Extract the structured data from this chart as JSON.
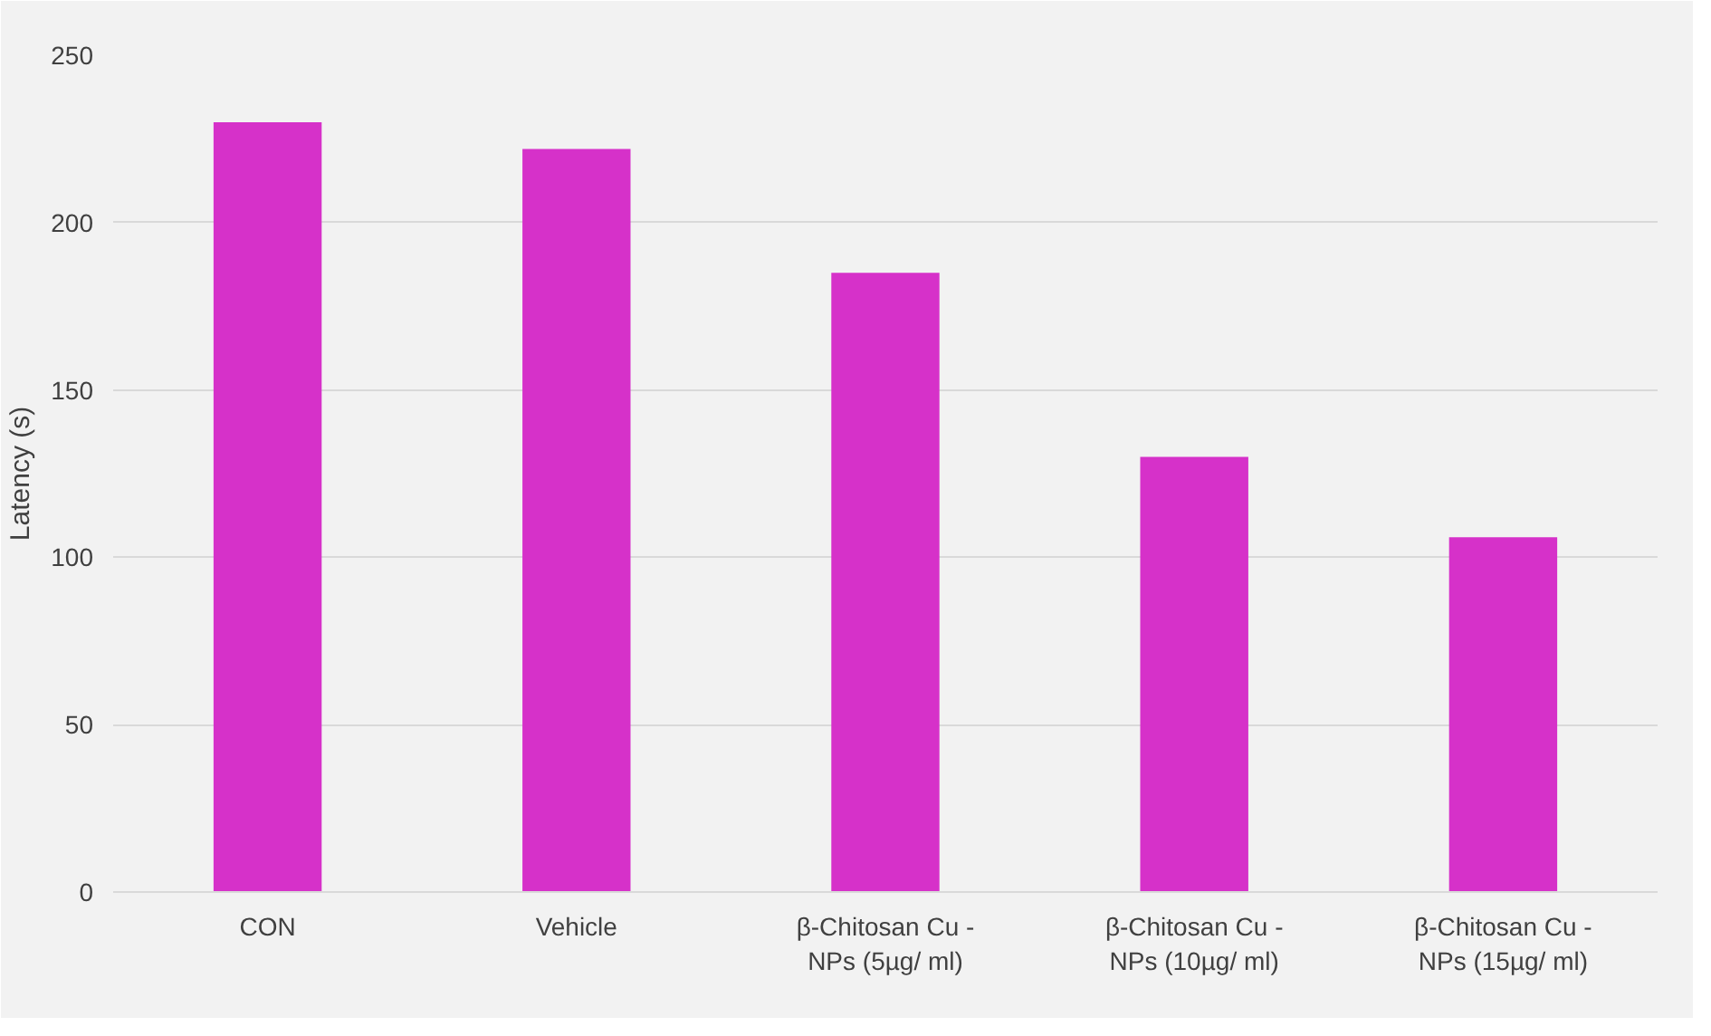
{
  "chart_data": {
    "type": "bar",
    "ylabel": "Latency (s)",
    "categories": [
      "CON",
      "Vehicle",
      "β-Chitosan Cu - NPs (5µg/ ml)",
      "β-Chitosan Cu - NPs (10µg/ ml)",
      "β-Chitosan Cu - NPs (15µg/ ml)"
    ],
    "values": [
      230,
      222,
      185,
      130,
      106
    ],
    "color": "#d631c9",
    "ylim": [
      0,
      250
    ],
    "yticks": [
      0,
      50,
      100,
      150,
      200,
      250
    ],
    "grid": "y"
  }
}
